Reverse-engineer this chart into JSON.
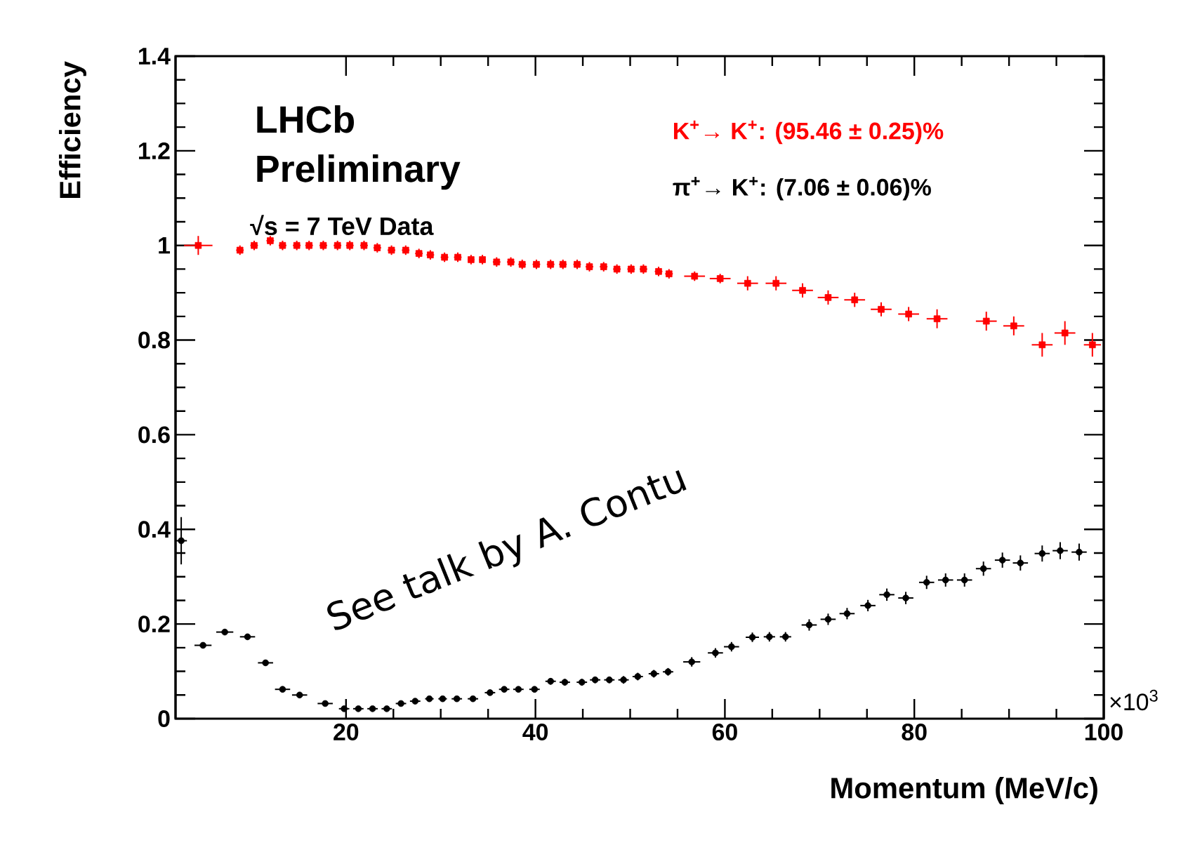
{
  "chart_data": {
    "type": "scatter",
    "xlabel": "Momentum (MeV/c)",
    "ylabel": "Efficiency",
    "annotations": [
      "LHCb",
      "Preliminary",
      "√s = 7 TeV Data",
      "See talk by A. Contu",
      "×10$^{3}$"
    ],
    "xlim": [
      2,
      100
    ],
    "ylim": [
      0,
      1.4
    ],
    "xticks": [
      20,
      40,
      60,
      80,
      100
    ],
    "yticks": [
      0,
      0.2,
      0.4,
      0.6,
      0.8,
      1,
      1.2,
      1.4
    ],
    "series": [
      {
        "name": "K$^{+}$→ K$^{+}$: (95.46 ± 0.25)%",
        "color": "#ff0000",
        "marker": "square",
        "x": [
          4.4,
          8.8,
          10.3,
          12.0,
          13.3,
          14.8,
          16.1,
          17.6,
          19.1,
          20.4,
          21.9,
          23.3,
          24.8,
          26.3,
          27.7,
          28.9,
          30.4,
          31.8,
          33.2,
          34.4,
          35.9,
          37.4,
          38.6,
          40.1,
          41.6,
          42.9,
          44.4,
          45.7,
          47.2,
          48.6,
          50.1,
          51.4,
          53.0,
          54.1,
          56.8,
          59.5,
          62.4,
          65.4,
          68.2,
          70.9,
          73.7,
          76.5,
          79.4,
          82.4,
          87.6,
          90.5,
          93.5,
          95.9,
          98.8
        ],
        "values": [
          1.0,
          0.99,
          1.0,
          1.01,
          1.0,
          1.0,
          1.0,
          1.0,
          1.0,
          1.0,
          1.0,
          0.995,
          0.99,
          0.99,
          0.983,
          0.98,
          0.975,
          0.975,
          0.97,
          0.97,
          0.965,
          0.965,
          0.96,
          0.96,
          0.96,
          0.96,
          0.96,
          0.955,
          0.955,
          0.95,
          0.95,
          0.95,
          0.945,
          0.94,
          0.935,
          0.93,
          0.92,
          0.92,
          0.905,
          0.89,
          0.885,
          0.865,
          0.855,
          0.845,
          0.84,
          0.83,
          0.79,
          0.815,
          0.79
        ],
        "errors": [
          0.02,
          0.01,
          0.01,
          0.01,
          0.01,
          0.01,
          0.01,
          0.01,
          0.01,
          0.01,
          0.01,
          0.01,
          0.01,
          0.01,
          0.01,
          0.01,
          0.01,
          0.01,
          0.01,
          0.01,
          0.01,
          0.01,
          0.01,
          0.01,
          0.01,
          0.01,
          0.01,
          0.01,
          0.01,
          0.01,
          0.01,
          0.01,
          0.01,
          0.01,
          0.01,
          0.01,
          0.015,
          0.015,
          0.015,
          0.015,
          0.015,
          0.015,
          0.015,
          0.02,
          0.02,
          0.02,
          0.025,
          0.025,
          0.025
        ],
        "xerrors": [
          1.5,
          0.4,
          0.4,
          0.4,
          0.4,
          0.4,
          0.4,
          0.4,
          0.4,
          0.4,
          0.4,
          0.4,
          0.4,
          0.4,
          0.4,
          0.4,
          0.4,
          0.4,
          0.35,
          0.35,
          0.4,
          0.4,
          0.4,
          0.4,
          0.4,
          0.4,
          0.4,
          0.4,
          0.4,
          0.4,
          0.4,
          0.4,
          0.4,
          0.4,
          1.1,
          1.1,
          1.1,
          1.1,
          1.1,
          1.1,
          1.1,
          1.1,
          1.1,
          1.1,
          1.1,
          1.1,
          1.1,
          1.1,
          0.9
        ]
      },
      {
        "name": "π$^{+}$→ K$^{+}$: (7.06 ± 0.06)%",
        "color": "#000000",
        "marker": "circle",
        "x": [
          2.6,
          4.9,
          7.2,
          9.6,
          11.5,
          13.3,
          15.1,
          17.8,
          19.8,
          21.3,
          22.8,
          24.3,
          25.8,
          27.3,
          28.8,
          30.2,
          31.7,
          33.4,
          35.2,
          36.7,
          38.2,
          39.9,
          41.6,
          43.1,
          44.9,
          46.3,
          47.8,
          49.3,
          50.8,
          52.5,
          54.0,
          56.5,
          59.0,
          60.7,
          62.9,
          64.7,
          66.4,
          68.9,
          70.9,
          72.9,
          75.1,
          77.1,
          79.1,
          81.3,
          83.3,
          85.3,
          87.3,
          89.3,
          91.2,
          93.5,
          95.4,
          97.4
        ],
        "values": [
          0.376,
          0.155,
          0.183,
          0.173,
          0.118,
          0.062,
          0.05,
          0.032,
          0.021,
          0.021,
          0.021,
          0.021,
          0.032,
          0.037,
          0.042,
          0.042,
          0.042,
          0.042,
          0.055,
          0.062,
          0.062,
          0.062,
          0.079,
          0.077,
          0.077,
          0.082,
          0.082,
          0.082,
          0.089,
          0.095,
          0.099,
          0.12,
          0.139,
          0.152,
          0.172,
          0.173,
          0.173,
          0.198,
          0.21,
          0.222,
          0.239,
          0.262,
          0.255,
          0.288,
          0.293,
          0.293,
          0.317,
          0.335,
          0.329,
          0.349,
          0.355,
          0.352
        ],
        "errors": [
          0.05,
          0.006,
          0.006,
          0.006,
          0.006,
          0.006,
          0.006,
          0.005,
          0.005,
          0.005,
          0.005,
          0.005,
          0.005,
          0.005,
          0.005,
          0.005,
          0.005,
          0.005,
          0.006,
          0.006,
          0.006,
          0.006,
          0.007,
          0.007,
          0.007,
          0.007,
          0.007,
          0.008,
          0.008,
          0.008,
          0.008,
          0.01,
          0.01,
          0.01,
          0.01,
          0.01,
          0.01,
          0.012,
          0.012,
          0.012,
          0.012,
          0.013,
          0.013,
          0.014,
          0.014,
          0.014,
          0.015,
          0.016,
          0.016,
          0.017,
          0.018,
          0.018
        ],
        "xerrors": [
          0.6,
          0.9,
          0.9,
          0.8,
          0.8,
          0.8,
          0.8,
          0.8,
          0.55,
          0.55,
          0.55,
          0.55,
          0.55,
          0.55,
          0.45,
          0.45,
          0.55,
          0.55,
          0.55,
          0.55,
          0.55,
          0.55,
          0.55,
          0.55,
          0.55,
          0.55,
          0.55,
          0.55,
          0.55,
          0.55,
          0.55,
          0.9,
          0.8,
          0.8,
          0.7,
          0.6,
          0.6,
          0.8,
          0.8,
          0.8,
          0.8,
          0.8,
          0.8,
          0.8,
          0.8,
          0.8,
          0.8,
          0.8,
          0.8,
          0.8,
          0.8,
          0.8
        ]
      }
    ]
  }
}
